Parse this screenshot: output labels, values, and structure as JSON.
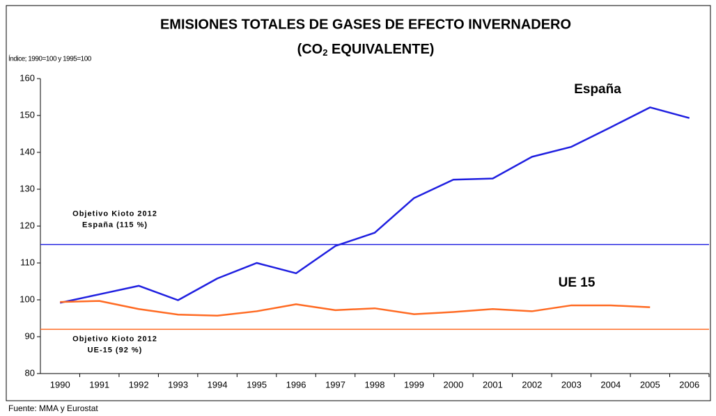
{
  "chart_data": {
    "type": "line",
    "title": "EMISIONES TOTALES DE GASES DE EFECTO INVERNADERO",
    "subtitle_parts": [
      "(CO",
      "2",
      " EQUIVALENTE)"
    ],
    "y_axis_label": "Índice; 1990=100 y 1995=100",
    "source": "Fuente: MMA y Eurostat",
    "categories": [
      "1990",
      "1991",
      "1992",
      "1993",
      "1994",
      "1995",
      "1996",
      "1997",
      "1998",
      "1999",
      "2000",
      "2001",
      "2002",
      "2003",
      "2004",
      "2005",
      "2006"
    ],
    "series": [
      {
        "name": "España",
        "color": "#1f1fe0",
        "values": [
          99.2,
          101.5,
          103.8,
          99.9,
          105.8,
          110,
          107.2,
          114.6,
          118.2,
          127.6,
          132.6,
          132.9,
          138.8,
          141.5,
          146.8,
          152.2,
          149.3
        ]
      },
      {
        "name": "UE 15",
        "color": "#ff6a22",
        "values": [
          99.4,
          99.7,
          97.5,
          96.0,
          95.7,
          96.9,
          98.8,
          97.2,
          97.7,
          96.1,
          96.7,
          97.5,
          96.9,
          98.5,
          98.5,
          98.0,
          null
        ]
      }
    ],
    "reference_lines": [
      {
        "value": 115,
        "color": "#1f1fe0",
        "label_lines": [
          "Objetivo Kioto 2012",
          "España (115 %)"
        ]
      },
      {
        "value": 92,
        "color": "#ff6a22",
        "label_lines": [
          "Objetivo Kioto 2012",
          "UE-15 (92 %)"
        ]
      }
    ],
    "ylim": [
      80,
      160
    ],
    "yticks": [
      80,
      90,
      100,
      110,
      120,
      130,
      140,
      150,
      160
    ],
    "grid": false
  }
}
